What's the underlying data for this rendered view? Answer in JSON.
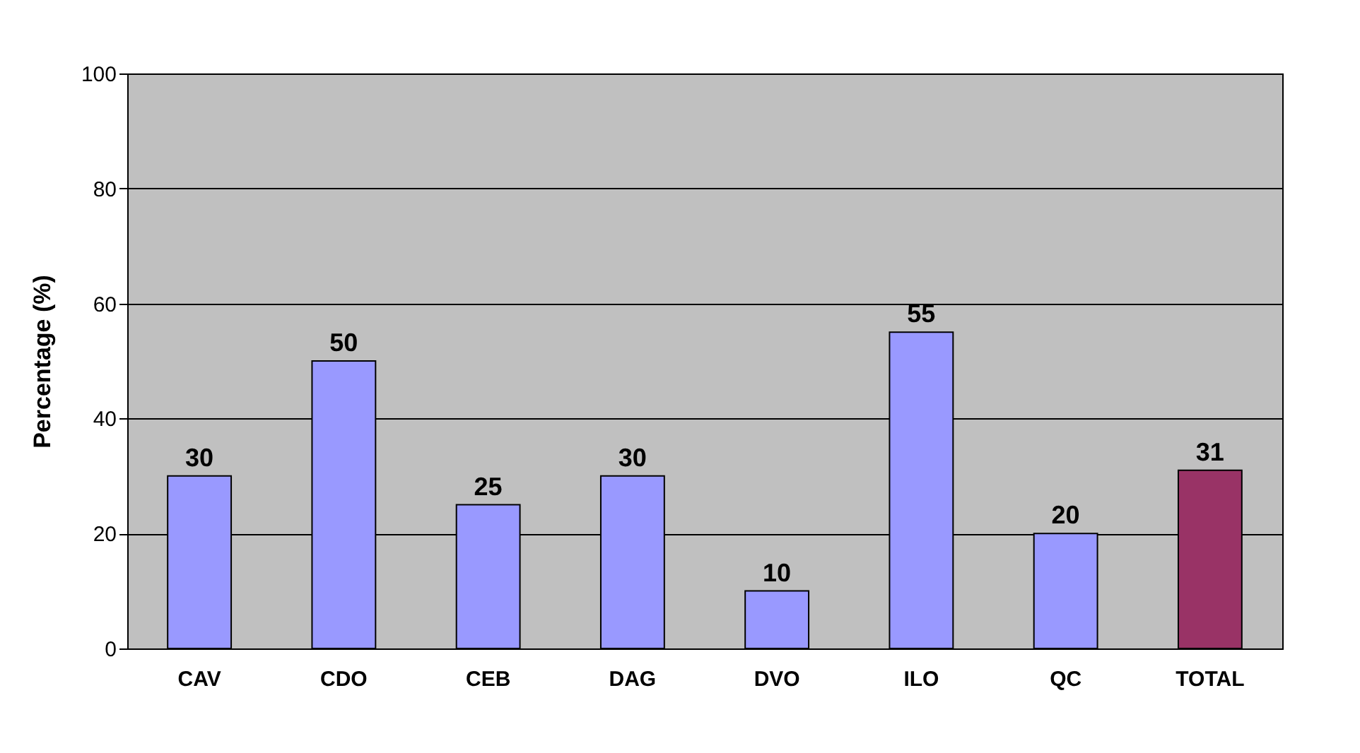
{
  "chart_data": {
    "type": "bar",
    "ylabel": "Percentage (%)",
    "categories": [
      "CAV",
      "CDO",
      "CEB",
      "DAG",
      "DVO",
      "ILO",
      "QC",
      "TOTAL"
    ],
    "values": [
      30,
      50,
      25,
      30,
      10,
      55,
      20,
      31
    ],
    "colors": [
      "#9999ff",
      "#9999ff",
      "#9999ff",
      "#9999ff",
      "#9999ff",
      "#9999ff",
      "#9999ff",
      "#993366"
    ],
    "ylim": [
      0,
      100
    ],
    "yticks": [
      0,
      20,
      40,
      60,
      80,
      100
    ],
    "grid": "y",
    "data_labels": true
  }
}
